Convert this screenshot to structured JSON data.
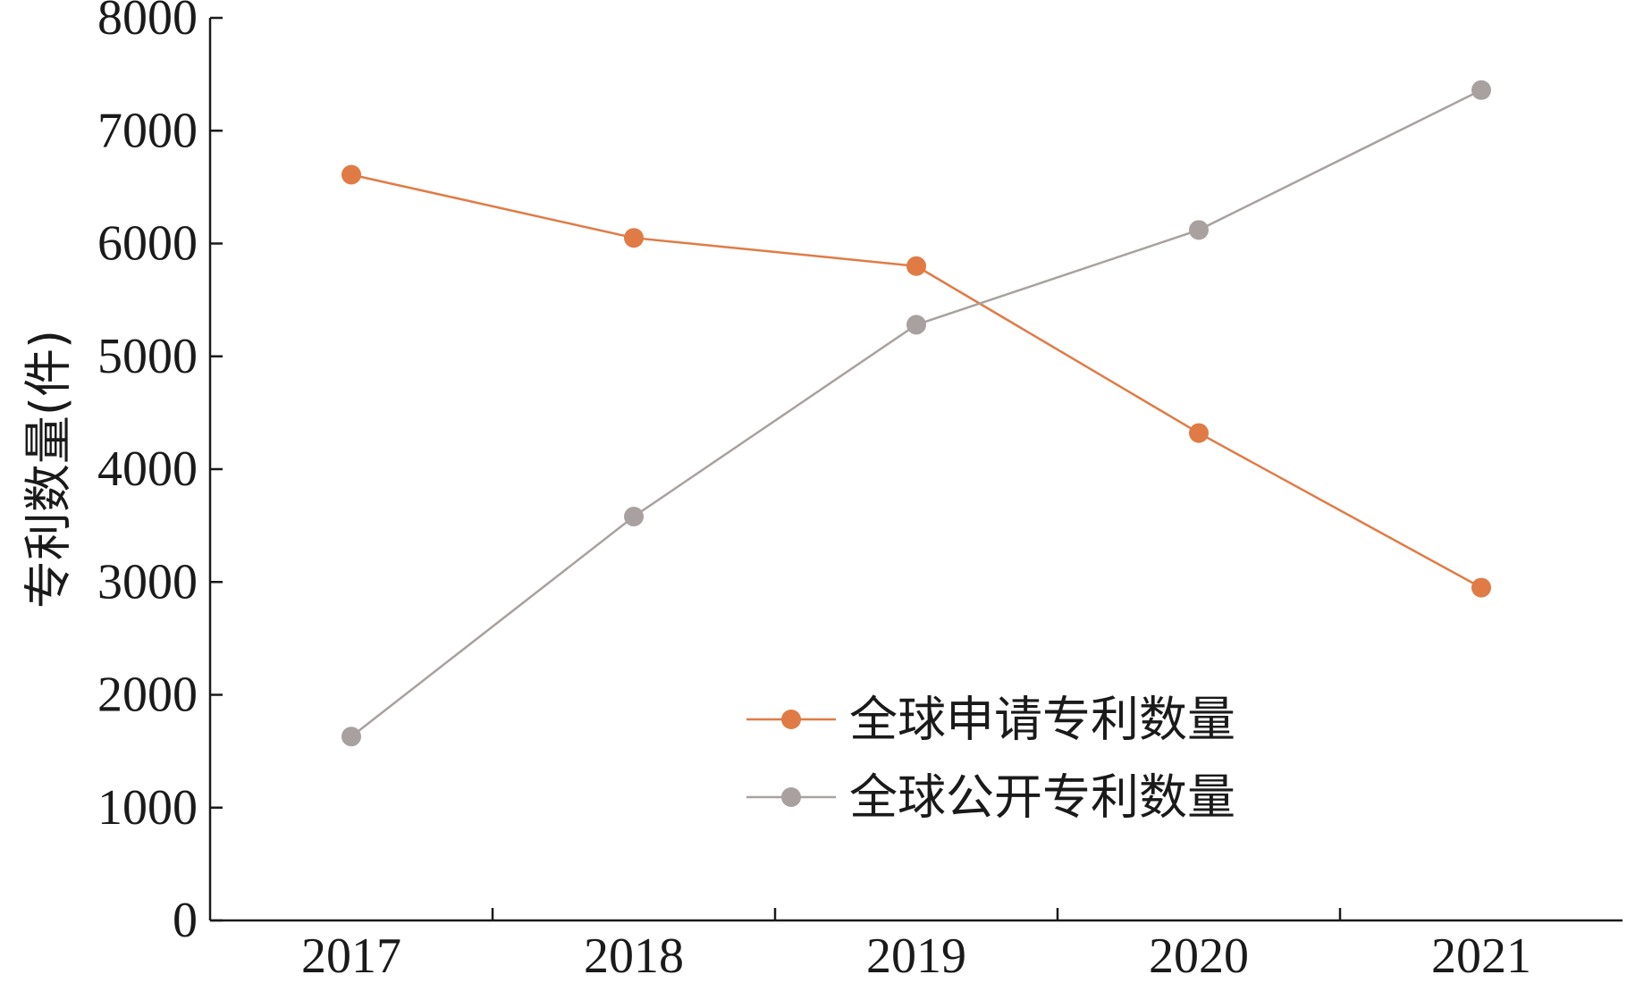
{
  "chart_data": {
    "type": "line",
    "categories": [
      "2017",
      "2018",
      "2019",
      "2020",
      "2021"
    ],
    "series": [
      {
        "name": "全球申请专利数量",
        "color": "#E07B45",
        "values": [
          6610,
          6050,
          5800,
          4320,
          2950
        ]
      },
      {
        "name": "全球公开专利数量",
        "color": "#A8A19F",
        "values": [
          1630,
          3580,
          5280,
          6120,
          7360
        ]
      }
    ],
    "title": "",
    "xlabel": "",
    "ylabel": "专利数量(件)",
    "ylim": [
      0,
      8000
    ],
    "yticks": [
      "0",
      "1000",
      "2000",
      "3000",
      "4000",
      "5000",
      "6000",
      "7000",
      "8000"
    ],
    "grid": false,
    "legend_position": "bottom-right"
  }
}
